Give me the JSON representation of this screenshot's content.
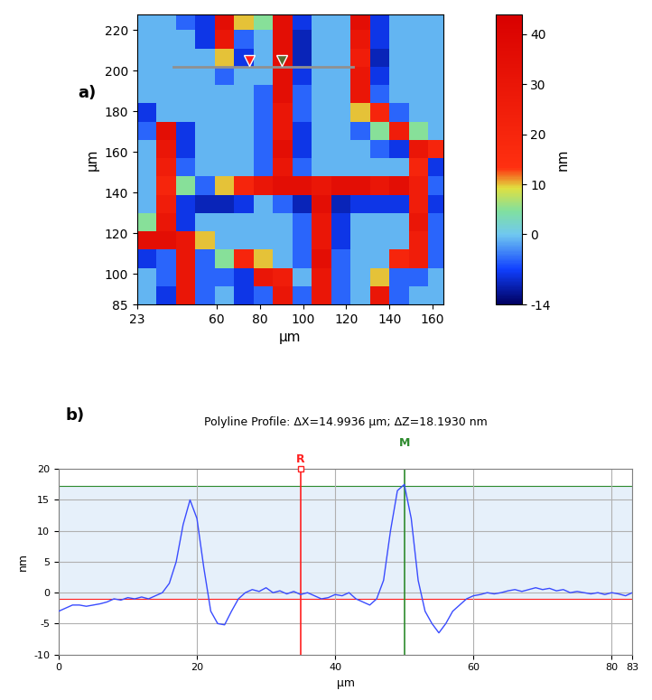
{
  "chart_data": [
    {
      "type": "heatmap",
      "panel_label": "a)",
      "x_label": "µm",
      "y_label": "µm",
      "colorbar_label": "nm",
      "x_edges": [
        23,
        32,
        41,
        50,
        59,
        68,
        77,
        86,
        95,
        104,
        113,
        122,
        131,
        140,
        149,
        158,
        165
      ],
      "y_edges": [
        85,
        94,
        103,
        112,
        121,
        130,
        139,
        148,
        157,
        166,
        175,
        184,
        193,
        202,
        211,
        220,
        228
      ],
      "cells": [
        [
          -1,
          -8,
          30,
          -5,
          -1,
          -8,
          -5,
          30,
          -5,
          30,
          -5,
          -1,
          30,
          -5,
          -1,
          -1
        ],
        [
          -1,
          -5,
          30,
          -5,
          -5,
          -8,
          30,
          25,
          -1,
          30,
          -5,
          -1,
          10,
          -5,
          -5,
          -1
        ],
        [
          -8,
          -5,
          30,
          -5,
          5,
          20,
          10,
          -1,
          -5,
          35,
          -5,
          -1,
          -1,
          20,
          25,
          -5
        ],
        [
          35,
          35,
          30,
          10,
          -1,
          -1,
          -1,
          -1,
          -5,
          30,
          -8,
          -1,
          -1,
          -1,
          25,
          -5
        ],
        [
          5,
          30,
          -8,
          -1,
          -1,
          -1,
          -1,
          -1,
          -5,
          30,
          -8,
          -1,
          -1,
          -1,
          30,
          -5
        ],
        [
          -1,
          25,
          -8,
          -10,
          -10,
          -8,
          -1,
          -5,
          -10,
          35,
          -10,
          -8,
          -8,
          -8,
          25,
          -8
        ],
        [
          -1,
          20,
          5,
          -5,
          10,
          20,
          30,
          35,
          35,
          30,
          35,
          35,
          30,
          35,
          25,
          -5
        ],
        [
          -1,
          25,
          -5,
          -1,
          -1,
          -1,
          -5,
          30,
          -5,
          -1,
          -1,
          -1,
          -1,
          -1,
          20,
          -8
        ],
        [
          -1,
          30,
          -8,
          -1,
          -1,
          -1,
          -5,
          35,
          -8,
          -1,
          -1,
          -1,
          -5,
          -8,
          30,
          20
        ],
        [
          -5,
          35,
          -8,
          -1,
          -1,
          -1,
          -5,
          30,
          -8,
          -1,
          -1,
          -5,
          5,
          25,
          5,
          -1
        ],
        [
          -8,
          -1,
          -1,
          -1,
          -1,
          -1,
          -5,
          30,
          -5,
          -1,
          -1,
          10,
          20,
          -5,
          -1,
          -1
        ],
        [
          -1,
          -1,
          -1,
          -1,
          -1,
          -1,
          -5,
          35,
          -5,
          -1,
          -1,
          30,
          -5,
          -1,
          -1,
          -1
        ],
        [
          -1,
          -1,
          -1,
          -1,
          -5,
          -1,
          -1,
          35,
          -8,
          -1,
          -1,
          30,
          -8,
          -1,
          -1,
          -1
        ],
        [
          -1,
          -1,
          -1,
          -1,
          10,
          -8,
          -1,
          35,
          -10,
          -1,
          -1,
          25,
          -10,
          -1,
          -1,
          -1
        ],
        [
          -1,
          -1,
          -1,
          -8,
          30,
          -5,
          -1,
          35,
          -10,
          -1,
          -1,
          30,
          -8,
          -1,
          -1,
          -1
        ],
        [
          -1,
          -1,
          -5,
          -8,
          35,
          10,
          5,
          35,
          -8,
          -1,
          -1,
          35,
          -8,
          -1,
          -1,
          -1
        ]
      ],
      "xlim": [
        23,
        165
      ],
      "xticks": [
        23,
        60,
        80,
        100,
        120,
        140,
        160
      ],
      "ylim": [
        85,
        228
      ],
      "yticks": [
        85,
        100,
        120,
        140,
        160,
        180,
        200,
        220
      ],
      "colorbar_range": [
        -14,
        44
      ],
      "colorbar_ticks": [
        -14,
        0,
        10,
        20,
        30,
        40
      ],
      "profile_line": {
        "x": [
          40,
          123
        ],
        "y": [
          202,
          202
        ],
        "color": "#909090"
      },
      "markers": [
        {
          "x": 75,
          "y": 205,
          "color": "#ff2020"
        },
        {
          "x": 90,
          "y": 205,
          "color": "#556b2f"
        }
      ]
    },
    {
      "type": "line",
      "panel_label": "b)",
      "title": "Polyline Profile: ΔX=14.9936 µm; ΔZ=18.1930 nm",
      "x_label": "µm",
      "y_label": "nm",
      "color": "#3a4cff",
      "grid": true,
      "x": [
        0,
        1,
        2,
        3,
        4,
        5,
        6,
        7,
        8,
        9,
        10,
        11,
        12,
        13,
        14,
        15,
        16,
        17,
        18,
        19,
        20,
        21,
        22,
        23,
        24,
        25,
        26,
        27,
        28,
        29,
        30,
        31,
        32,
        33,
        34,
        35,
        36,
        37,
        38,
        39,
        40,
        41,
        42,
        43,
        44,
        45,
        46,
        47,
        48,
        49,
        50,
        51,
        52,
        53,
        54,
        55,
        56,
        57,
        58,
        59,
        60,
        61,
        62,
        63,
        64,
        65,
        66,
        67,
        68,
        69,
        70,
        71,
        72,
        73,
        74,
        75,
        76,
        77,
        78,
        79,
        80,
        81,
        82,
        83
      ],
      "values": [
        -3,
        -2.5,
        -2,
        -2,
        -2.2,
        -2,
        -1.8,
        -1.5,
        -1,
        -1.2,
        -0.8,
        -1,
        -0.7,
        -1,
        -0.5,
        0,
        1.5,
        5,
        11,
        15,
        12,
        4,
        -3,
        -5,
        -5.2,
        -3,
        -1,
        0,
        0.5,
        0.2,
        0.8,
        0,
        0.3,
        -0.2,
        0.2,
        -0.3,
        0,
        -0.5,
        -1,
        -0.8,
        -0.3,
        -0.5,
        0,
        -1,
        -1.5,
        -2,
        -1,
        2,
        10,
        16.5,
        17.5,
        12,
        2,
        -3,
        -5,
        -6.5,
        -5,
        -3,
        -2,
        -1,
        -0.5,
        -0.3,
        0,
        -0.2,
        0,
        0.3,
        0.5,
        0.2,
        0.5,
        0.8,
        0.5,
        0.7,
        0.3,
        0.5,
        0,
        0.2,
        0,
        -0.2,
        0,
        -0.3,
        0,
        -0.2,
        -0.5,
        0
      ],
      "xlim": [
        0,
        83
      ],
      "xticks": [
        0,
        20,
        40,
        60,
        80,
        83
      ],
      "ylim": [
        -10,
        20
      ],
      "yticks": [
        -10,
        -5,
        0,
        5,
        10,
        15,
        20
      ],
      "cursors": [
        {
          "name": "R",
          "x": 35,
          "level": -1.0,
          "color": "#ff2020"
        },
        {
          "name": "M",
          "x": 50,
          "level": 17.2,
          "color": "#2e8b2e"
        }
      ]
    }
  ]
}
